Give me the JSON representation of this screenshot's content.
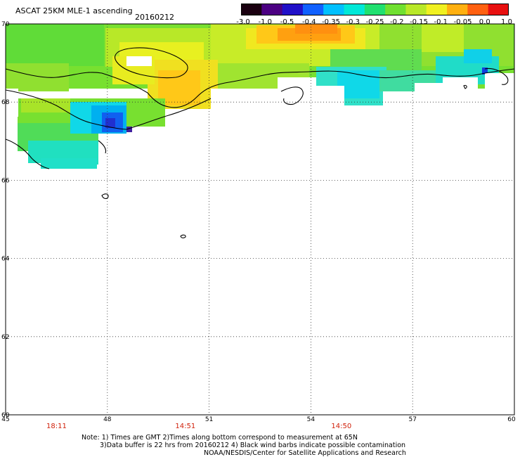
{
  "header": {
    "title": "ASCAT 25KM MLE-1 ascending",
    "date": "20160212"
  },
  "colorbar": {
    "labels": [
      "-3.0",
      "-1.0",
      "-0.5",
      "-0.4",
      "-0.35",
      "-0.3",
      "-0.25",
      "-0.2",
      "-0.15",
      "-0.1",
      "-0.05",
      "0.0",
      "1.0"
    ],
    "colors": [
      "#1a0010",
      "#4b0082",
      "#2010c8",
      "#1060ff",
      "#00c0ff",
      "#00e8d8",
      "#20e070",
      "#70e030",
      "#b8e828",
      "#f0f020",
      "#ffb010",
      "#ff6010",
      "#e81010"
    ]
  },
  "map": {
    "lat_range": [
      60,
      70
    ],
    "lon_range": [
      45,
      60
    ],
    "lat_labels": [
      "70",
      "68",
      "66",
      "64",
      "62",
      "60"
    ],
    "lon_labels": [
      "45",
      "48",
      "51",
      "54",
      "57",
      "60"
    ],
    "time_labels": [
      {
        "lon": 46.5,
        "text": "18:11"
      },
      {
        "lon": 50.3,
        "text": "14:51"
      },
      {
        "lon": 54.9,
        "text": "14:50"
      }
    ]
  },
  "notes": {
    "line1": "Note: 1) Times are GMT 2)Times along bottom correspond to measurement at 65N",
    "line2": "3)Data buffer is 22 hrs from 20160212 4) Black wind barbs indicate possible contamination",
    "line3": "NOAA/NESDIS/Center for Satellite Applications and Research"
  }
}
